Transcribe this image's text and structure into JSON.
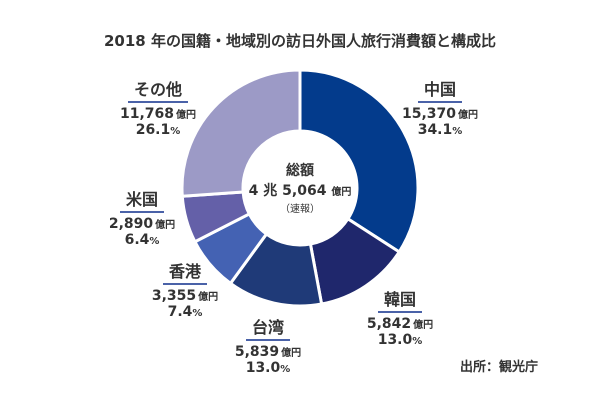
{
  "chart_data": {
    "type": "pie",
    "donut": true,
    "title": "2018 年の国籍・地域別の訪日外国人旅行消費額と構成比",
    "center": {
      "title": "総額",
      "value": "4 兆 5,064",
      "unit": "億円",
      "note": "（速報）"
    },
    "unit": "億円",
    "percent_unit": "%",
    "categories": [
      "中国",
      "韓国",
      "台湾",
      "香港",
      "米国",
      "その他"
    ],
    "values": [
      15370,
      5842,
      5839,
      3355,
      2890,
      11768
    ],
    "value_labels": [
      "15,370",
      "5,842",
      "5,839",
      "3,355",
      "2,890",
      "11,768"
    ],
    "percents": [
      34.1,
      13.0,
      13.0,
      7.4,
      6.4,
      26.1
    ],
    "percent_labels": [
      "34.1",
      "13.0",
      "13.0",
      "7.4",
      "6.4",
      "26.1"
    ],
    "colors": [
      "#033b8c",
      "#1f276c",
      "#1f3a78",
      "#4462b3",
      "#6460a8",
      "#9c9ac6"
    ],
    "source": "出所：観光庁"
  }
}
